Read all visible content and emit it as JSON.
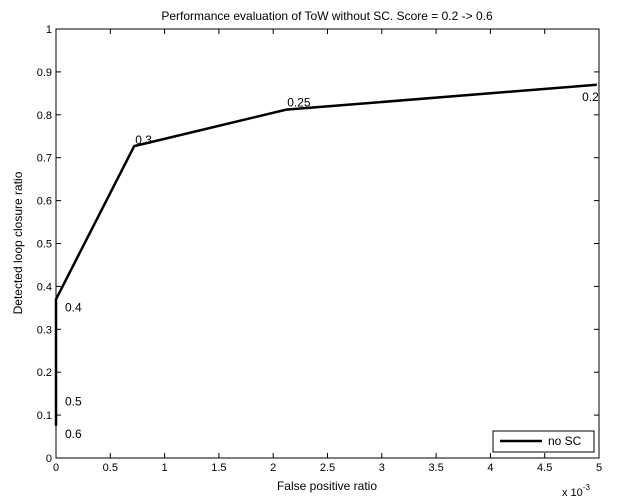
{
  "chart_data": {
    "type": "line",
    "title": "Performance evaluation of ToW without SC. Score = 0.2 -> 0.6",
    "xlabel": "False positive ratio",
    "ylabel": "Detected loop closure ratio",
    "x_exponent": "x 10",
    "x_exponent_power": "-3",
    "xlim": [
      0,
      5
    ],
    "ylim": [
      0,
      1
    ],
    "x_ticks": [
      0,
      0.5,
      1,
      1.5,
      2,
      2.5,
      3,
      3.5,
      4,
      4.5,
      5
    ],
    "x_tick_labels": [
      "0",
      "0.5",
      "1",
      "1.5",
      "2",
      "2.5",
      "3",
      "3.5",
      "4",
      "4.5",
      "5"
    ],
    "y_ticks": [
      0,
      0.1,
      0.2,
      0.3,
      0.4,
      0.5,
      0.6,
      0.7,
      0.8,
      0.9,
      1
    ],
    "y_tick_labels": [
      "0",
      "0.1",
      "0.2",
      "0.3",
      "0.4",
      "0.5",
      "0.6",
      "0.7",
      "0.8",
      "0.9",
      "1"
    ],
    "grid": false,
    "legend_position": "bottom-right",
    "series": [
      {
        "name": "no SC",
        "color": "#000000",
        "x": [
          0,
          0,
          0,
          0.72,
          2.12,
          4.98
        ],
        "y": [
          0.075,
          0.15,
          0.37,
          0.727,
          0.812,
          0.87
        ]
      }
    ],
    "annotations": [
      {
        "text": "0.6",
        "x": 0,
        "y": 0.075
      },
      {
        "text": "0.5",
        "x": 0,
        "y": 0.15
      },
      {
        "text": "0.4",
        "x": 0,
        "y": 0.37
      },
      {
        "text": "0.3",
        "x": 0.72,
        "y": 0.727
      },
      {
        "text": "0.25",
        "x": 2.12,
        "y": 0.812
      },
      {
        "text": "0.2",
        "x": 4.98,
        "y": 0.87
      }
    ]
  }
}
